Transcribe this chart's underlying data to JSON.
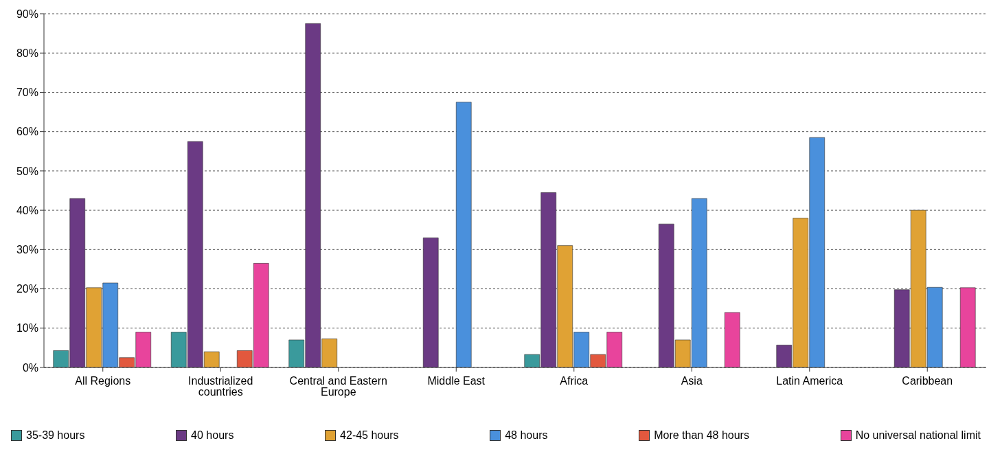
{
  "chart_data": {
    "type": "bar",
    "categories": [
      "All Regions",
      "Industrialized countries",
      "Central and Eastern Europe",
      "Middle East",
      "Africa",
      "Asia",
      "Latin America",
      "Caribbean"
    ],
    "series": [
      {
        "name": "35-39 hours",
        "color": "#3a9a9c",
        "values": [
          4.3,
          9,
          7,
          null,
          3.3,
          null,
          null,
          null
        ]
      },
      {
        "name": "40 hours",
        "color": "#6b3a84",
        "values": [
          43,
          57.5,
          87.5,
          33,
          44.5,
          36.5,
          5.7,
          19.8
        ]
      },
      {
        "name": "42-45 hours",
        "color": "#e0a234",
        "values": [
          20.3,
          4,
          7.3,
          null,
          31,
          7,
          38,
          40
        ]
      },
      {
        "name": "48 hours",
        "color": "#4a90dc",
        "values": [
          21.5,
          null,
          null,
          67.5,
          9,
          43,
          58.5,
          20.4
        ]
      },
      {
        "name": "More than 48 hours",
        "color": "#e2583e",
        "values": [
          2.5,
          4.3,
          null,
          null,
          3.3,
          null,
          null,
          null
        ]
      },
      {
        "name": "No universal national limit",
        "color": "#e8449c",
        "values": [
          9,
          26.5,
          null,
          null,
          9,
          14,
          null,
          20.3
        ]
      }
    ],
    "ylim": [
      0,
      90
    ],
    "yticks": [
      {
        "value": 0,
        "label": "0%"
      },
      {
        "value": 10,
        "label": "10%"
      },
      {
        "value": 20,
        "label": "20%"
      },
      {
        "value": 30,
        "label": "30%"
      },
      {
        "value": 40,
        "label": "40%"
      },
      {
        "value": 50,
        "label": "50%"
      },
      {
        "value": 60,
        "label": "60%"
      },
      {
        "value": 70,
        "label": "70%"
      },
      {
        "value": 80,
        "label": "80%"
      },
      {
        "value": 90,
        "label": "90%"
      }
    ],
    "grid": "y",
    "legend": "bottom"
  }
}
